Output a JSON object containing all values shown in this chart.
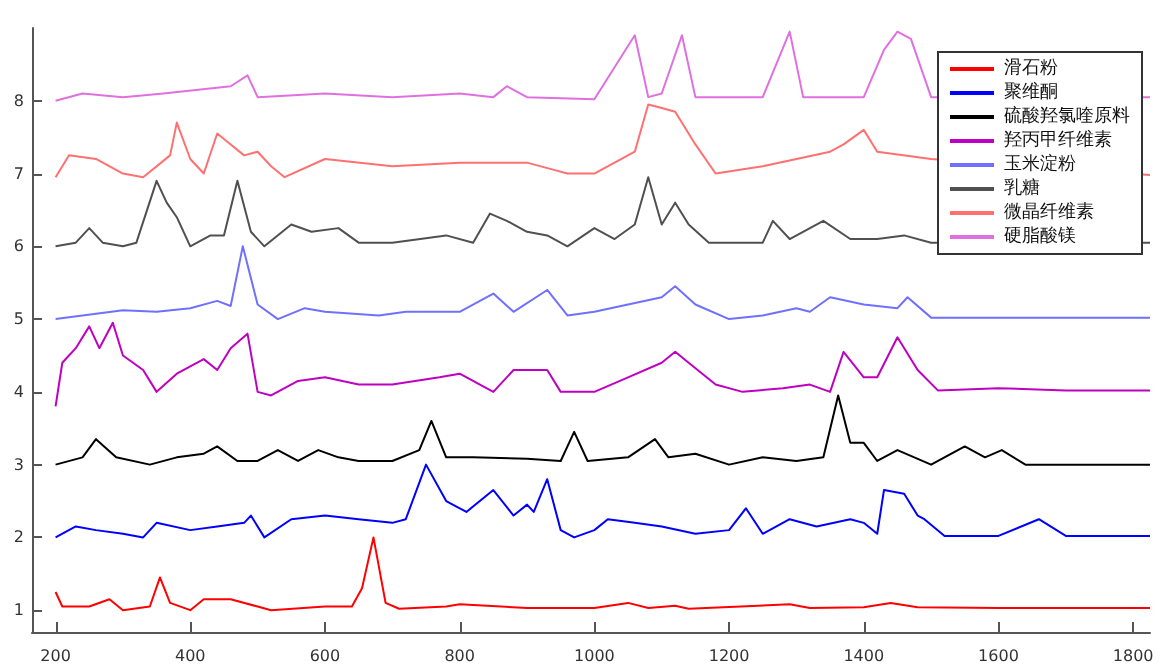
{
  "chart_data": {
    "type": "line",
    "xlim": [
      165,
      1825
    ],
    "xticks": [
      200,
      400,
      600,
      800,
      1000,
      1200,
      1400,
      1600,
      1800
    ],
    "ylim": [
      0.7,
      9
    ],
    "yticks": [
      1,
      2,
      3,
      4,
      5,
      6,
      7,
      8
    ],
    "grid": false,
    "legend": "top right",
    "marker": "none",
    "line_style": "solid",
    "series": [
      {
        "name": "滑石粉",
        "color": "#ff0000",
        "x": [
          200,
          210,
          250,
          280,
          300,
          340,
          355,
          370,
          400,
          420,
          460,
          500,
          520,
          600,
          640,
          655,
          672,
          690,
          710,
          780,
          800,
          900,
          1000,
          1050,
          1080,
          1120,
          1140,
          1290,
          1320,
          1400,
          1440,
          1480,
          1600,
          1825
        ],
        "values": [
          1.25,
          1.05,
          1.05,
          1.15,
          1.0,
          1.05,
          1.45,
          1.1,
          1.0,
          1.15,
          1.15,
          1.05,
          1.0,
          1.05,
          1.05,
          1.3,
          2.0,
          1.1,
          1.02,
          1.05,
          1.08,
          1.03,
          1.03,
          1.1,
          1.03,
          1.06,
          1.02,
          1.08,
          1.03,
          1.04,
          1.1,
          1.04,
          1.03,
          1.03
        ]
      },
      {
        "name": "聚维酮",
        "color": "#0000ff",
        "x": [
          200,
          230,
          260,
          300,
          330,
          350,
          400,
          440,
          480,
          490,
          510,
          550,
          600,
          650,
          700,
          720,
          750,
          780,
          810,
          850,
          880,
          900,
          910,
          930,
          950,
          970,
          1000,
          1020,
          1060,
          1100,
          1150,
          1200,
          1225,
          1250,
          1290,
          1330,
          1380,
          1400,
          1420,
          1430,
          1460,
          1480,
          1490,
          1520,
          1600,
          1660,
          1700,
          1825
        ],
        "values": [
          2.0,
          2.15,
          2.1,
          2.05,
          2.0,
          2.2,
          2.1,
          2.15,
          2.2,
          2.3,
          2.0,
          2.25,
          2.3,
          2.25,
          2.2,
          2.25,
          3.0,
          2.5,
          2.35,
          2.65,
          2.3,
          2.45,
          2.35,
          2.8,
          2.1,
          2.0,
          2.1,
          2.25,
          2.2,
          2.15,
          2.05,
          2.1,
          2.4,
          2.05,
          2.25,
          2.15,
          2.25,
          2.2,
          2.05,
          2.65,
          2.6,
          2.3,
          2.25,
          2.02,
          2.02,
          2.25,
          2.02,
          2.02
        ]
      },
      {
        "name": "硫酸羟氯喹原料",
        "color": "#000000",
        "x": [
          200,
          240,
          260,
          290,
          340,
          380,
          420,
          440,
          470,
          500,
          530,
          560,
          590,
          620,
          650,
          700,
          740,
          758,
          780,
          820,
          900,
          950,
          970,
          990,
          1050,
          1090,
          1110,
          1150,
          1200,
          1250,
          1300,
          1340,
          1362,
          1380,
          1400,
          1420,
          1450,
          1500,
          1550,
          1580,
          1605,
          1640,
          1825
        ],
        "values": [
          3.0,
          3.1,
          3.35,
          3.1,
          3.0,
          3.1,
          3.15,
          3.25,
          3.05,
          3.05,
          3.2,
          3.05,
          3.2,
          3.1,
          3.05,
          3.05,
          3.2,
          3.6,
          3.1,
          3.1,
          3.08,
          3.05,
          3.45,
          3.05,
          3.1,
          3.35,
          3.1,
          3.15,
          3.0,
          3.1,
          3.05,
          3.1,
          3.95,
          3.3,
          3.3,
          3.05,
          3.2,
          3.0,
          3.25,
          3.1,
          3.2,
          3.0,
          3.0
        ]
      },
      {
        "name": "羟丙甲纤维素",
        "color": "#c000c0",
        "x": [
          200,
          210,
          230,
          250,
          265,
          285,
          300,
          330,
          350,
          380,
          420,
          440,
          460,
          485,
          500,
          520,
          560,
          600,
          650,
          700,
          770,
          800,
          850,
          880,
          900,
          930,
          950,
          1000,
          1050,
          1100,
          1120,
          1140,
          1180,
          1220,
          1280,
          1320,
          1350,
          1370,
          1400,
          1420,
          1450,
          1480,
          1510,
          1600,
          1700,
          1825
        ],
        "values": [
          3.8,
          4.4,
          4.6,
          4.9,
          4.6,
          4.95,
          4.5,
          4.3,
          4.0,
          4.25,
          4.45,
          4.3,
          4.6,
          4.8,
          4.0,
          3.95,
          4.15,
          4.2,
          4.1,
          4.1,
          4.2,
          4.25,
          4.0,
          4.3,
          4.3,
          4.3,
          4.0,
          4.0,
          4.2,
          4.4,
          4.55,
          4.4,
          4.1,
          4.0,
          4.05,
          4.1,
          4.0,
          4.55,
          4.2,
          4.2,
          4.75,
          4.3,
          4.02,
          4.05,
          4.02,
          4.02
        ]
      },
      {
        "name": "玉米淀粉",
        "color": "#7070ff",
        "x": [
          200,
          300,
          350,
          400,
          440,
          460,
          478,
          500,
          530,
          570,
          600,
          680,
          720,
          800,
          850,
          880,
          930,
          960,
          1000,
          1050,
          1100,
          1120,
          1150,
          1200,
          1250,
          1300,
          1320,
          1350,
          1400,
          1450,
          1465,
          1500,
          1825
        ],
        "values": [
          5.0,
          5.12,
          5.1,
          5.15,
          5.25,
          5.18,
          6.0,
          5.2,
          5.0,
          5.15,
          5.1,
          5.05,
          5.1,
          5.1,
          5.35,
          5.1,
          5.4,
          5.05,
          5.1,
          5.2,
          5.3,
          5.45,
          5.2,
          5.0,
          5.05,
          5.15,
          5.1,
          5.3,
          5.2,
          5.15,
          5.3,
          5.02,
          5.02
        ]
      },
      {
        "name": "乳糖",
        "color": "#505050",
        "x": [
          200,
          230,
          250,
          270,
          300,
          320,
          350,
          365,
          380,
          400,
          430,
          450,
          470,
          490,
          510,
          550,
          580,
          620,
          650,
          700,
          780,
          820,
          845,
          870,
          900,
          930,
          960,
          1000,
          1030,
          1060,
          1080,
          1100,
          1120,
          1140,
          1170,
          1250,
          1265,
          1290,
          1340,
          1380,
          1420,
          1460,
          1500,
          1825
        ],
        "values": [
          6.0,
          6.05,
          6.25,
          6.05,
          6.0,
          6.05,
          6.9,
          6.6,
          6.4,
          6.0,
          6.15,
          6.15,
          6.9,
          6.2,
          6.0,
          6.3,
          6.2,
          6.25,
          6.05,
          6.05,
          6.15,
          6.05,
          6.45,
          6.35,
          6.2,
          6.15,
          6.0,
          6.25,
          6.1,
          6.3,
          6.95,
          6.3,
          6.6,
          6.3,
          6.05,
          6.05,
          6.35,
          6.1,
          6.35,
          6.1,
          6.1,
          6.15,
          6.05,
          6.05
        ]
      },
      {
        "name": "微晶纤维素",
        "color": "#ff7070",
        "x": [
          200,
          220,
          260,
          300,
          330,
          370,
          380,
          400,
          420,
          440,
          460,
          480,
          500,
          520,
          540,
          600,
          700,
          800,
          900,
          940,
          960,
          1000,
          1060,
          1080,
          1100,
          1120,
          1150,
          1180,
          1250,
          1300,
          1350,
          1370,
          1400,
          1420,
          1500,
          1825
        ],
        "values": [
          6.95,
          7.25,
          7.2,
          7.0,
          6.95,
          7.25,
          7.7,
          7.2,
          7.0,
          7.55,
          7.4,
          7.25,
          7.3,
          7.1,
          6.95,
          7.2,
          7.1,
          7.15,
          7.15,
          7.05,
          7.0,
          7.0,
          7.3,
          7.95,
          7.9,
          7.85,
          7.4,
          7.0,
          7.1,
          7.2,
          7.3,
          7.4,
          7.6,
          7.3,
          7.2,
          6.98
        ]
      },
      {
        "name": "硬脂酸镁",
        "color": "#e070e0",
        "x": [
          200,
          240,
          300,
          360,
          460,
          485,
          500,
          600,
          700,
          800,
          850,
          870,
          900,
          1000,
          1060,
          1080,
          1100,
          1130,
          1150,
          1250,
          1290,
          1310,
          1400,
          1430,
          1450,
          1470,
          1500,
          1825
        ],
        "values": [
          8.0,
          8.1,
          8.05,
          8.1,
          8.2,
          8.35,
          8.05,
          8.1,
          8.05,
          8.1,
          8.05,
          8.2,
          8.05,
          8.02,
          8.9,
          8.05,
          8.1,
          8.9,
          8.05,
          8.05,
          8.95,
          8.05,
          8.05,
          8.7,
          8.95,
          8.85,
          8.05,
          8.05
        ]
      }
    ]
  }
}
